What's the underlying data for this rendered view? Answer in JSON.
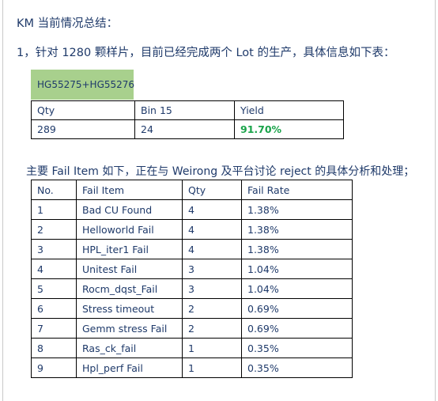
{
  "heading": "KM 当前情况总结：",
  "line1": "1，针对 1280 颗样片，目前已经完成两个 Lot 的生产，具体信息如下表：",
  "lot_tag": "HG55275+HG55276",
  "summary": {
    "headers": [
      "Qty",
      "Bin 15",
      "Yield"
    ],
    "values": [
      "289",
      "24",
      "91.70%"
    ],
    "yield_color": "#1aa34a"
  },
  "line2": "主要 Fail Item 如下，正在与 Weirong 及平台讨论 reject 的具体分析和处理；",
  "fail_table": {
    "headers": [
      "No.",
      "Fail Item",
      "Qty",
      "Fail Rate"
    ],
    "rows": [
      [
        "1",
        "Bad CU Found",
        "4",
        "1.38%"
      ],
      [
        "2",
        "Helloworld Fail",
        "4",
        "1.38%"
      ],
      [
        "3",
        "HPL_iter1 Fail",
        "4",
        "1.38%"
      ],
      [
        "4",
        "Unitest Fail",
        "3",
        "1.04%"
      ],
      [
        "5",
        "Rocm_dqst_Fail",
        "3",
        "1.04%"
      ],
      [
        "6",
        "Stress timeout",
        "2",
        "0.69%"
      ],
      [
        "7",
        "Gemm stress Fail",
        "2",
        "0.69%"
      ],
      [
        "8",
        "Ras_ck_fail",
        "1",
        "0.35%"
      ],
      [
        "9",
        "Hpl_perf Fail",
        "1",
        "0.35%"
      ]
    ]
  },
  "colors": {
    "text": "#1f3a6a",
    "lot_tag_bg": "#a8d08d"
  }
}
